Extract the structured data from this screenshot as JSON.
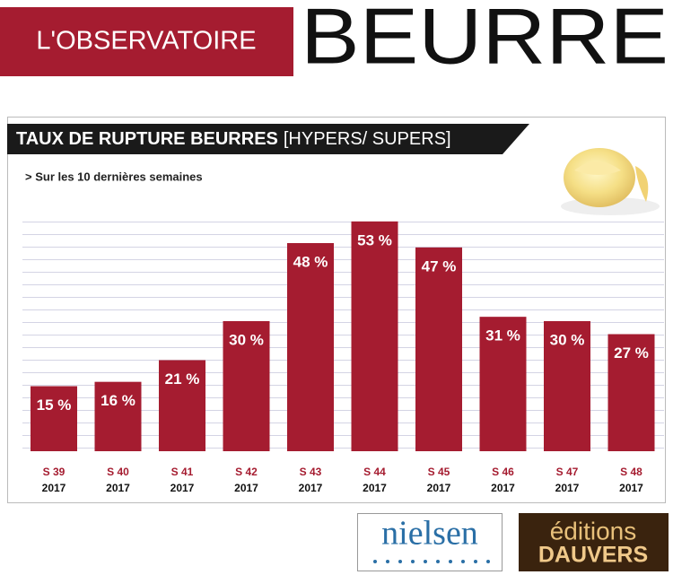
{
  "header": {
    "left": "L'OBSERVATOIRE",
    "right": "BEURRE"
  },
  "chart_data": {
    "type": "bar",
    "title": "TAUX DE RUPTURE BEURRES",
    "title_suffix": "[HYPERS/ SUPERS]",
    "subtitle": "> Sur les 10 dernières semaines",
    "categories": [
      [
        "S 39",
        "2017"
      ],
      [
        "S 40",
        "2017"
      ],
      [
        "S 41",
        "2017"
      ],
      [
        "S 42",
        "2017"
      ],
      [
        "S 43",
        "2017"
      ],
      [
        "S 44",
        "2017"
      ],
      [
        "S 45",
        "2017"
      ],
      [
        "S 46",
        "2017"
      ],
      [
        "S 47",
        "2017"
      ],
      [
        "S 48",
        "2017"
      ]
    ],
    "values": [
      15,
      16,
      21,
      30,
      48,
      53,
      47,
      31,
      30,
      27
    ],
    "value_labels": [
      "15 %",
      "16 %",
      "21 %",
      "30 %",
      "48 %",
      "53 %",
      "47 %",
      "31 %",
      "30 %",
      "27 %"
    ],
    "color": "#a51c30",
    "ylim": [
      0,
      60
    ]
  },
  "footer": {
    "nielsen": "nielsen",
    "dauvers_top": "éditions",
    "dauvers_bottom": "DAUVERS"
  }
}
